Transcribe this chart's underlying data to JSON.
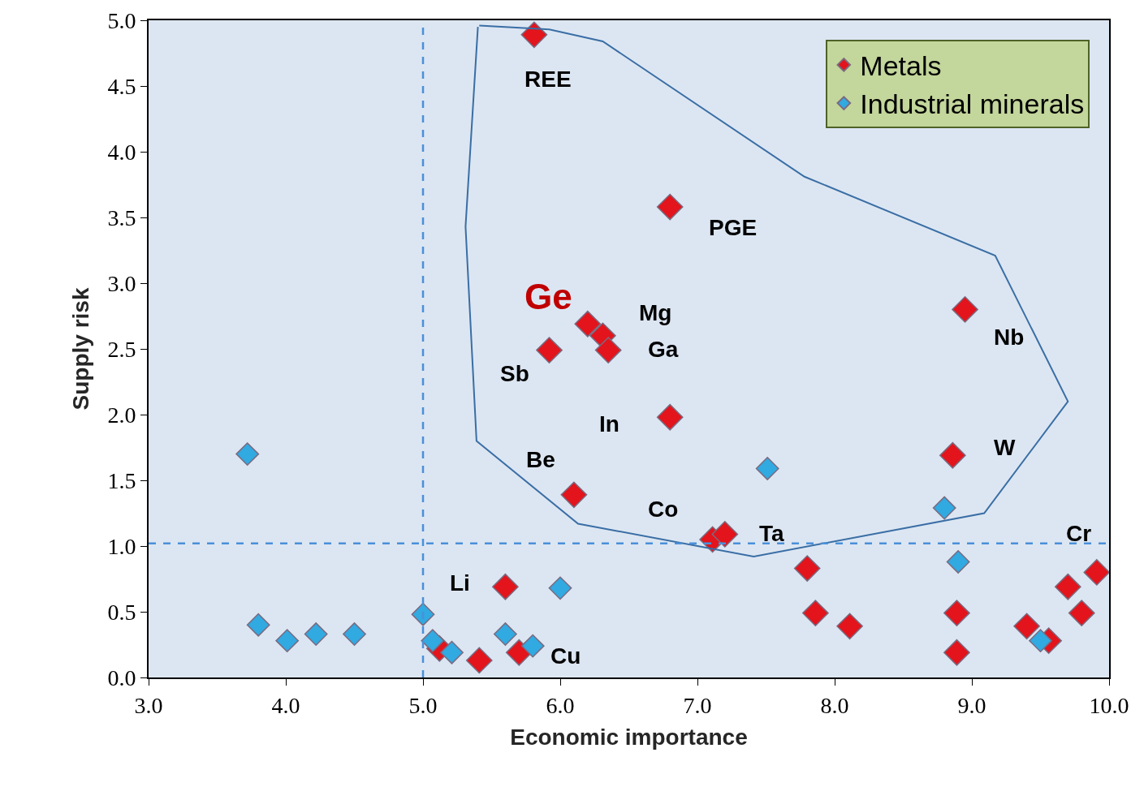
{
  "chart_data": {
    "type": "scatter",
    "xlabel": "Economic importance",
    "ylabel": "Supply risk",
    "xlim": [
      3.0,
      10.0
    ],
    "ylim": [
      0.0,
      5.0
    ],
    "xticks": [
      {
        "value": 3,
        "label": "3.0"
      },
      {
        "value": 4,
        "label": "4.0"
      },
      {
        "value": 5,
        "label": "5.0"
      },
      {
        "value": 6,
        "label": "6.0"
      },
      {
        "value": 7,
        "label": "7.0"
      },
      {
        "value": 8,
        "label": "8.0"
      },
      {
        "value": 9,
        "label": "9.0"
      },
      {
        "value": 10,
        "label": "10.0"
      }
    ],
    "yticks": [
      {
        "value": 0,
        "label": "0.0"
      },
      0.5,
      {
        "value": 1,
        "label": "1.0"
      },
      1.5,
      {
        "value": 2,
        "label": "2.0"
      },
      2.5,
      {
        "value": 3,
        "label": "3.0"
      },
      3.5,
      {
        "value": 4,
        "label": "4.0"
      },
      4.5,
      {
        "value": 5,
        "label": "5.0"
      }
    ],
    "grid": false,
    "legend": "top right",
    "marker": "diamond",
    "series": [
      {
        "name": "Metals",
        "color": "#e3141c",
        "x": [
          5.81,
          6.8,
          6.2,
          6.31,
          6.35,
          5.92,
          6.8,
          6.1,
          7.11,
          7.2,
          8.95,
          8.86,
          5.6,
          5.12,
          5.41,
          5.7,
          7.8,
          7.86,
          8.11,
          8.89,
          8.89,
          9.4,
          9.56,
          9.7,
          9.8,
          9.91
        ],
        "values": [
          4.89,
          3.58,
          2.69,
          2.6,
          2.49,
          2.49,
          1.98,
          1.39,
          1.05,
          1.09,
          2.8,
          1.69,
          0.69,
          0.22,
          0.13,
          0.19,
          0.83,
          0.49,
          0.39,
          0.49,
          0.19,
          0.39,
          0.28,
          0.69,
          0.49,
          0.8
        ]
      },
      {
        "name": "Industrial minerals",
        "color": "#31a9e1",
        "x": [
          3.72,
          3.8,
          4.01,
          4.22,
          4.5,
          5.0,
          5.07,
          5.21,
          5.6,
          5.8,
          6.0,
          7.51,
          8.8,
          8.9,
          9.5
        ],
        "values": [
          1.7,
          0.4,
          0.28,
          0.33,
          0.33,
          0.48,
          0.28,
          0.19,
          0.33,
          0.24,
          0.68,
          1.59,
          1.29,
          0.88,
          0.28
        ]
      },
      {
        "type": "line",
        "marker": "none",
        "color": "#3a6ea5",
        "x": [
          5.41,
          5.92,
          6.31,
          7.78,
          9.17,
          9.7,
          9.09,
          7.41,
          6.13,
          5.39,
          5.31,
          5.4
        ],
        "values": [
          4.96,
          4.93,
          4.84,
          3.81,
          3.21,
          2.1,
          1.25,
          0.92,
          1.17,
          1.8,
          3.43,
          4.95
        ]
      }
    ],
    "ref_lines": [
      {
        "axis": "x",
        "value": 5.0,
        "color": "#4a90d9",
        "line_style": "dashed"
      },
      {
        "axis": "y",
        "value": 1.02,
        "color": "#4a90d9",
        "line_style": "dashed"
      }
    ],
    "annotations": [
      {
        "text": "REE",
        "x": 5.81,
        "y": 4.89
      },
      {
        "text": "PGE",
        "x": 6.8,
        "y": 3.58
      },
      {
        "text": "Ge",
        "x": 6.2,
        "y": 2.69
      },
      {
        "text": "Mg",
        "x": 6.31,
        "y": 2.6
      },
      {
        "text": "Ga",
        "x": 6.35,
        "y": 2.49
      },
      {
        "text": "Sb",
        "x": 5.92,
        "y": 2.49
      },
      {
        "text": "Nb",
        "x": 8.95,
        "y": 2.8
      },
      {
        "text": "In",
        "x": 6.8,
        "y": 1.98
      },
      {
        "text": "W",
        "x": 8.86,
        "y": 1.69
      },
      {
        "text": "Be",
        "x": 6.1,
        "y": 1.39
      },
      {
        "text": "Co",
        "x": 7.11,
        "y": 1.05
      },
      {
        "text": "Ta",
        "x": 7.2,
        "y": 1.09
      },
      {
        "text": "Cr",
        "x": 9.91,
        "y": 0.8
      },
      {
        "text": "Li",
        "x": 5.6,
        "y": 0.69
      },
      {
        "text": "Cu",
        "x": 5.7,
        "y": 0.19
      }
    ]
  }
}
